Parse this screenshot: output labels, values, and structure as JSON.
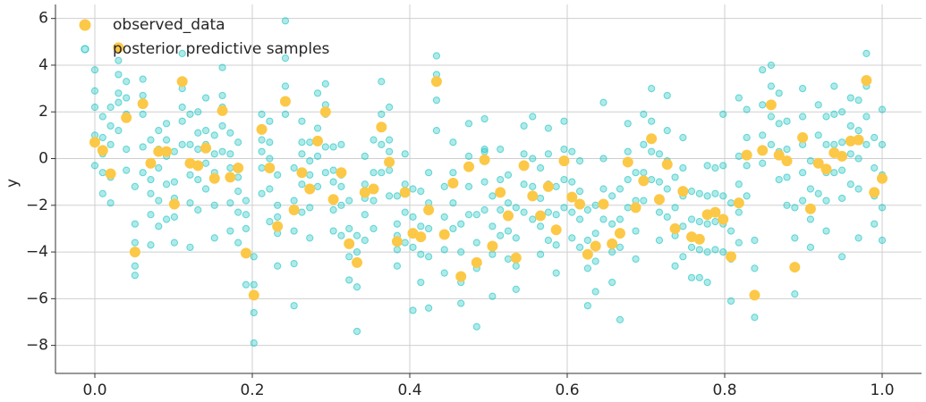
{
  "chart_data": {
    "type": "scatter",
    "ylabel": "y",
    "xlim": [
      -0.05,
      1.05
    ],
    "ylim": [
      -9.2,
      6.6
    ],
    "xticks": [
      {
        "value": 0,
        "label": "0.0"
      },
      {
        "value": 0.2,
        "label": "0.2"
      },
      {
        "value": 0.4,
        "label": "0.4"
      },
      {
        "value": 0.6,
        "label": "0.6"
      },
      {
        "value": 0.8,
        "label": "0.8"
      },
      {
        "value": 1,
        "label": "1.0"
      }
    ],
    "yticks": [
      {
        "value": -8,
        "label": "−8"
      },
      {
        "value": -6,
        "label": "−6"
      },
      {
        "value": -4,
        "label": "−4"
      },
      {
        "value": -2,
        "label": "−2"
      },
      0,
      2,
      4,
      6
    ],
    "grid": true,
    "legend": "upper left",
    "x": [
      0,
      0.01,
      0.02,
      0.03,
      0.04,
      0.051,
      0.061,
      0.071,
      0.081,
      0.091,
      0.101,
      0.111,
      0.121,
      0.131,
      0.141,
      0.152,
      0.162,
      0.172,
      0.182,
      0.192,
      0.202,
      0.212,
      0.222,
      0.232,
      0.242,
      0.253,
      0.263,
      0.273,
      0.283,
      0.293,
      0.303,
      0.313,
      0.323,
      0.333,
      0.343,
      0.354,
      0.364,
      0.374,
      0.384,
      0.394,
      0.404,
      0.414,
      0.424,
      0.434,
      0.444,
      0.455,
      0.465,
      0.475,
      0.485,
      0.495,
      0.505,
      0.515,
      0.525,
      0.535,
      0.545,
      0.556,
      0.566,
      0.576,
      0.586,
      0.596,
      0.606,
      0.616,
      0.626,
      0.636,
      0.646,
      0.657,
      0.667,
      0.677,
      0.687,
      0.697,
      0.707,
      0.717,
      0.727,
      0.737,
      0.747,
      0.758,
      0.768,
      0.778,
      0.788,
      0.798,
      0.808,
      0.818,
      0.828,
      0.838,
      0.848,
      0.859,
      0.869,
      0.879,
      0.889,
      0.899,
      0.909,
      0.919,
      0.929,
      0.939,
      0.949,
      0.96,
      0.97,
      0.98,
      0.99,
      1.0
    ],
    "series": [
      {
        "name": "observed_data",
        "color": "#fcc847",
        "alpha": 1,
        "values": [
          0.7,
          0.35,
          -0.65,
          4.75,
          1.75,
          -4.0,
          2.35,
          -0.2,
          0.3,
          0.3,
          -1.95,
          3.3,
          -0.2,
          -0.3,
          0.45,
          -0.85,
          2.05,
          -0.8,
          -0.4,
          -4.05,
          -5.85,
          1.25,
          -0.4,
          -2.9,
          2.45,
          -2.2,
          -0.6,
          -1.3,
          0.75,
          2.0,
          -1.75,
          -0.6,
          -3.65,
          -4.45,
          -1.45,
          -1.3,
          1.35,
          -0.15,
          -3.55,
          -1.45,
          -3.2,
          -3.35,
          -2.2,
          3.3,
          -3.25,
          -1.05,
          -5.05,
          -0.35,
          -4.45,
          -0.05,
          -3.75,
          -1.45,
          -2.45,
          -4.25,
          -0.3,
          -1.6,
          -2.45,
          -1.2,
          -3.05,
          -0.1,
          -1.65,
          -1.95,
          -4.1,
          -3.75,
          -1.95,
          -3.65,
          -3.2,
          -0.15,
          -2.1,
          -0.95,
          0.85,
          -1.75,
          -0.25,
          -3.0,
          -1.4,
          -3.35,
          -3.45,
          -2.4,
          -2.3,
          -2.6,
          -4.2,
          -1.9,
          0.15,
          -5.85,
          0.35,
          2.3,
          0.15,
          -0.1,
          -4.65,
          0.9,
          -2.15,
          -0.2,
          -0.45,
          0.25,
          0.1,
          0.75,
          0.8,
          3.35,
          -1.45,
          -0.85
        ]
      },
      {
        "name": "posterior predictive samples",
        "color": "#17c3c0",
        "alpha": 0.35,
        "values": [
          [
            3.8,
            2.2,
            1.0,
            -0.3,
            2.9
          ],
          [
            1.8,
            0.2,
            -1.5,
            -0.6,
            0.9
          ],
          [
            2.2,
            0.6,
            -0.8,
            1.4,
            -1.9
          ],
          [
            3.6,
            2.4,
            1.2,
            4.2,
            2.8
          ],
          [
            3.3,
            1.9,
            0.4,
            -0.5,
            2.6
          ],
          [
            -1.2,
            -2.8,
            -4.6,
            -3.6,
            -5.0
          ],
          [
            3.4,
            1.9,
            0.5,
            2.7,
            -0.6
          ],
          [
            0.8,
            -0.9,
            -2.4,
            -1.5,
            -3.7
          ],
          [
            1.2,
            -0.4,
            -1.8,
            -2.9,
            0.4
          ],
          [
            1.5,
            0.1,
            -1.1,
            -2.6,
            0.8
          ],
          [
            0.3,
            -1.0,
            -2.5,
            -3.6,
            -1.7
          ],
          [
            4.5,
            3.0,
            1.6,
            0.6,
            2.2
          ],
          [
            1.9,
            0.6,
            -0.7,
            -1.9,
            -3.8
          ],
          [
            2.0,
            0.4,
            -0.9,
            -2.2,
            1.1
          ],
          [
            2.6,
            1.2,
            -0.2,
            -1.3,
            0.6
          ],
          [
            1.0,
            -0.6,
            -2.0,
            -3.4,
            0.2
          ],
          [
            3.9,
            2.7,
            1.4,
            0.3,
            2.2
          ],
          [
            1.1,
            -0.4,
            -1.9,
            -3.1,
            0.2
          ],
          [
            0.7,
            -0.8,
            -2.3,
            -3.6,
            -1.4
          ],
          [
            -1.8,
            -3.0,
            -4.1,
            -5.4,
            -2.4
          ],
          [
            -4.2,
            -5.4,
            -6.6,
            -7.9,
            -5.9
          ],
          [
            1.9,
            0.8,
            -0.4,
            -1.5,
            0.3
          ],
          [
            1.6,
            0.0,
            -1.3,
            -2.7,
            0.7
          ],
          [
            -0.7,
            -2.0,
            -3.2,
            -4.6,
            -2.5
          ],
          [
            5.9,
            4.3,
            3.1,
            1.9,
            2.5
          ],
          [
            -0.4,
            -1.8,
            -3.1,
            -4.5,
            -6.3
          ],
          [
            1.6,
            0.2,
            -1.1,
            -2.3,
            0.7
          ],
          [
            0.7,
            -0.7,
            -2.1,
            -3.4,
            -0.1
          ],
          [
            2.8,
            1.3,
            0.1,
            -1.2,
            0.7
          ],
          [
            3.2,
            1.9,
            0.5,
            -0.6,
            2.3
          ],
          [
            0.5,
            -1.0,
            -2.2,
            -3.1,
            -0.5
          ],
          [
            0.6,
            -0.7,
            -2.0,
            -3.3,
            -1.2
          ],
          [
            -1.8,
            -3.0,
            -4.2,
            -5.2,
            -3.7
          ],
          [
            -3.3,
            -4.5,
            -5.5,
            -7.4,
            -4.0
          ],
          [
            0.1,
            -1.1,
            -2.4,
            -3.5,
            -1.7
          ],
          [
            0.8,
            -0.6,
            -1.8,
            -3.0,
            -1.3
          ],
          [
            3.3,
            1.9,
            0.6,
            -0.6,
            1.4
          ],
          [
            2.2,
            0.8,
            -0.5,
            -1.6,
            0.3
          ],
          [
            -1.6,
            -2.8,
            -3.9,
            -4.6,
            -3.3
          ],
          [
            0.2,
            -1.1,
            -2.3,
            -3.6,
            -1.5
          ],
          [
            -1.3,
            -2.5,
            -3.8,
            -6.5,
            -3.2
          ],
          [
            -1.4,
            -2.9,
            -4.1,
            -5.3,
            -3.4
          ],
          [
            -0.6,
            -1.9,
            -3.0,
            -4.2,
            -6.4
          ],
          [
            4.4,
            3.6,
            2.5,
            1.2,
            3.3
          ],
          [
            -1.2,
            -2.5,
            -3.9,
            -4.9,
            -3.3
          ],
          [
            0.7,
            -0.6,
            -1.9,
            -3.0,
            -1.1
          ],
          [
            -2.8,
            -4.0,
            -5.3,
            -6.2,
            -5.0
          ],
          [
            1.5,
            0.1,
            -1.2,
            -2.4,
            -0.4
          ],
          [
            -2.4,
            -3.6,
            -4.7,
            -7.2,
            -4.4
          ],
          [
            1.7,
            0.3,
            -1.0,
            -2.2,
            0.4
          ],
          [
            -1.6,
            -2.9,
            -4.1,
            -5.9,
            -3.7
          ],
          [
            0.4,
            -0.9,
            -2.2,
            -3.3,
            -1.4
          ],
          [
            -0.7,
            -1.9,
            -3.1,
            -4.3,
            -2.5
          ],
          [
            -2.1,
            -3.4,
            -4.6,
            -5.6,
            -4.2
          ],
          [
            1.4,
            0.2,
            -1.1,
            -2.3,
            -0.3
          ],
          [
            1.8,
            0.0,
            -1.2,
            -2.6,
            -1.6
          ],
          [
            -0.4,
            -1.7,
            -2.9,
            -4.1,
            -2.4
          ],
          [
            1.3,
            0.2,
            -1.1,
            -2.3,
            -3.5
          ],
          [
            -1.2,
            -2.4,
            -3.7,
            -4.9,
            -3.0
          ],
          [
            1.6,
            0.4,
            -0.9,
            -2.1,
            -0.1
          ],
          [
            0.3,
            -1.0,
            -2.3,
            -3.4,
            -1.6
          ],
          [
            -0.1,
            -1.4,
            -2.6,
            -3.8,
            -1.9
          ],
          [
            -2.2,
            -3.5,
            -4.7,
            -6.3,
            -4.1
          ],
          [
            -2.0,
            -3.2,
            -4.4,
            -5.7,
            -3.7
          ],
          [
            2.4,
            0.0,
            -1.3,
            -2.6,
            -1.9
          ],
          [
            -1.6,
            -2.8,
            -4.0,
            -5.3,
            -3.6
          ],
          [
            -1.3,
            -2.6,
            -3.8,
            -6.9,
            -3.2
          ],
          [
            1.5,
            0.3,
            -0.9,
            -2.1,
            -0.1
          ],
          [
            -0.6,
            -1.8,
            -3.1,
            -4.3,
            -2.1
          ],
          [
            1.9,
            0.6,
            -0.6,
            -1.8,
            -0.9
          ],
          [
            3.0,
            1.6,
            0.3,
            -0.9,
            0.8
          ],
          [
            0.2,
            -1.0,
            -2.3,
            -3.5,
            -1.7
          ],
          [
            2.7,
            1.2,
            -0.1,
            -1.3,
            -2.5
          ],
          [
            -0.8,
            -2.1,
            -3.3,
            -4.6,
            -3.0
          ],
          [
            0.9,
            -0.4,
            -1.6,
            -2.9,
            -4.2
          ],
          [
            -1.4,
            -2.6,
            -3.8,
            -5.1,
            -3.3
          ],
          [
            -1.5,
            -2.7,
            -3.9,
            -5.1,
            -3.4
          ],
          [
            -0.3,
            -1.6,
            -2.8,
            -4.0,
            -5.3
          ],
          [
            -0.4,
            -1.5,
            -2.7,
            -3.9,
            -2.3
          ],
          [
            1.9,
            -0.3,
            -1.6,
            -2.8,
            -4.0
          ],
          [
            -1.9,
            -3.1,
            -4.3,
            -6.1,
            -4.2
          ],
          [
            2.6,
            0.1,
            -1.1,
            -2.3,
            -3.6
          ],
          [
            2.1,
            0.9,
            -0.3,
            -1.6,
            0.1
          ],
          [
            -3.5,
            -4.7,
            -5.9,
            -6.8,
            -5.8
          ],
          [
            3.8,
            2.3,
            1.0,
            -0.2,
            0.3
          ],
          [
            4.0,
            3.1,
            1.8,
            0.6,
            2.3
          ],
          [
            2.8,
            1.5,
            0.3,
            -0.9,
            0.1
          ],
          [
            1.6,
            0.4,
            -0.8,
            -2.0,
            -0.1
          ],
          [
            -2.1,
            -3.4,
            -4.6,
            -5.8,
            -4.6
          ],
          [
            3.0,
            1.8,
            0.6,
            -0.6,
            -1.8
          ],
          [
            -0.1,
            -1.3,
            -2.6,
            -3.8,
            -2.1
          ],
          [
            2.3,
            1.0,
            -0.2,
            -1.5,
            -0.2
          ],
          [
            1.8,
            0.6,
            -0.6,
            -1.8,
            -3.1
          ],
          [
            3.1,
            1.9,
            0.6,
            -0.6,
            0.2
          ],
          [
            2.0,
            0.7,
            -0.5,
            -1.7,
            -4.2
          ],
          [
            2.6,
            1.4,
            0.2,
            -1.1,
            0.7
          ],
          [
            2.5,
            1.2,
            0.0,
            -1.3,
            -3.4
          ],
          [
            4.5,
            3.1,
            1.8,
            0.6,
            3.3
          ],
          [
            0.9,
            -0.4,
            -1.6,
            -2.8,
            -1.4
          ],
          [
            2.1,
            0.6,
            -0.7,
            -2.1,
            -3.5
          ]
        ]
      }
    ]
  }
}
